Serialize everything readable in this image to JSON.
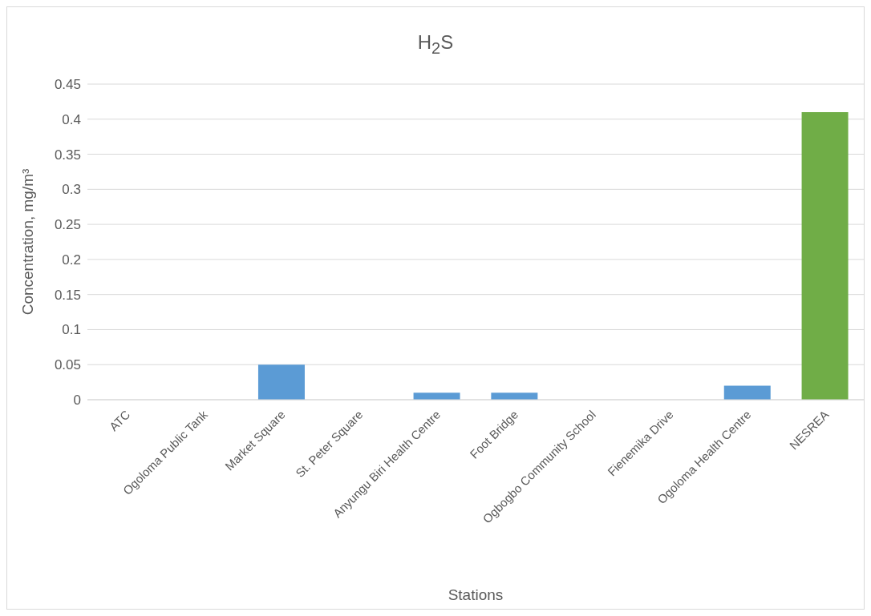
{
  "chart_data": {
    "type": "bar",
    "title": "H$_{2}$S",
    "xlabel": "Stations",
    "ylabel": "Concentration, mg/m³",
    "categories": [
      "ATC",
      "Ogoloma Public Tank",
      "Market Square",
      "St. Peter Square",
      "Anyungu Biri Health Centre",
      "Foot Bridge",
      "Ogbogbo Community School",
      "Fienemika Drive",
      "Ogoloma Health Centre",
      "NESREA"
    ],
    "values": [
      0,
      0,
      0.05,
      0,
      0.01,
      0.01,
      0,
      0,
      0.02,
      0.41
    ],
    "colors": [
      "#5b9bd5",
      "#5b9bd5",
      "#5b9bd5",
      "#5b9bd5",
      "#5b9bd5",
      "#5b9bd5",
      "#5b9bd5",
      "#5b9bd5",
      "#5b9bd5",
      "#70ad47"
    ],
    "ylim": [
      0,
      0.45
    ],
    "yticks": [
      0,
      0.05,
      0.1,
      0.15,
      0.2,
      0.25,
      0.3,
      0.35,
      0.4,
      0.45
    ],
    "grid": "y",
    "legend": false
  }
}
